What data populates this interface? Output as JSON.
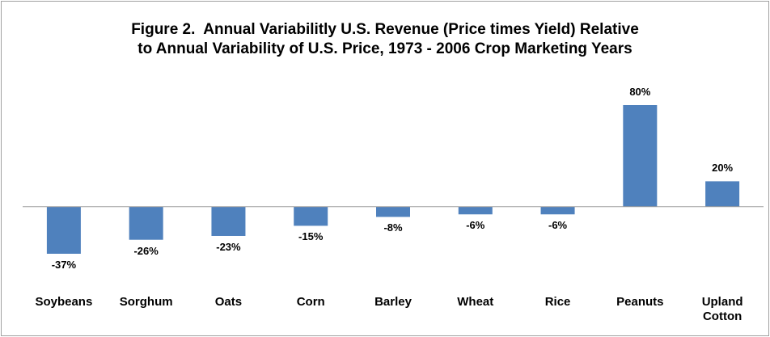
{
  "chart_data": {
    "type": "bar",
    "title": [
      "Figure 2.  Annual Variabilitly U.S. Revenue (Price times Yield) Relative",
      "to Annual Variability of U.S. Price, 1973 - 2006 Crop Marketing Years"
    ],
    "categories": [
      "Soybeans",
      "Sorghum",
      "Oats",
      "Corn",
      "Barley",
      "Wheat",
      "Rice",
      "Peanuts",
      "Upland Cotton"
    ],
    "values": [
      -37,
      -26,
      -23,
      -15,
      -8,
      -6,
      -6,
      80,
      20
    ],
    "value_labels": [
      "-37%",
      "-26%",
      "-23%",
      "-15%",
      "-8%",
      "-6%",
      "-6%",
      "80%",
      "20%"
    ],
    "color": "#4f81bd"
  }
}
